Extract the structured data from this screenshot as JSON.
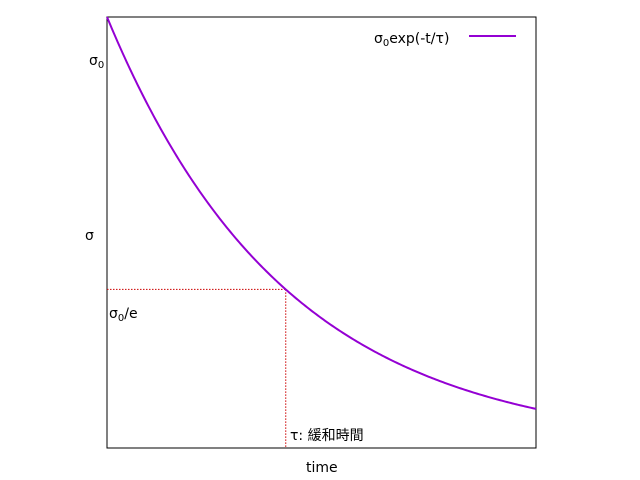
{
  "chart_data": {
    "type": "line",
    "title": "",
    "xlabel": "time",
    "ylabel": "σ",
    "tau": 1.0,
    "sigma0": 1.0,
    "xlim": [
      0,
      2.4
    ],
    "ylim": [
      0,
      1.0
    ],
    "grid": false,
    "legend_position": "top-right",
    "series": [
      {
        "name": "σ0exp(-t/τ)",
        "color": "#9400d3",
        "x": [
          0.0,
          0.2,
          0.4,
          0.6,
          0.8,
          1.0,
          1.2,
          1.4,
          1.6,
          1.8,
          2.0,
          2.2,
          2.4
        ],
        "y": [
          1.0,
          0.819,
          0.67,
          0.549,
          0.449,
          0.368,
          0.301,
          0.247,
          0.202,
          0.165,
          0.135,
          0.111,
          0.091
        ]
      }
    ],
    "reference_lines": {
      "color": "#cc0000",
      "x_value": 1.0,
      "y_value": 0.368
    },
    "labels": {
      "sigma0_base": "σ",
      "sigma0_sub": "0",
      "sigma0e_base": "σ",
      "sigma0e_sub": "0",
      "sigma0e_rest": "/e",
      "tau_label": "τ: 緩和時間",
      "legend_base": "σ",
      "legend_sub": "0",
      "legend_rest": "exp(-t/τ)"
    }
  }
}
